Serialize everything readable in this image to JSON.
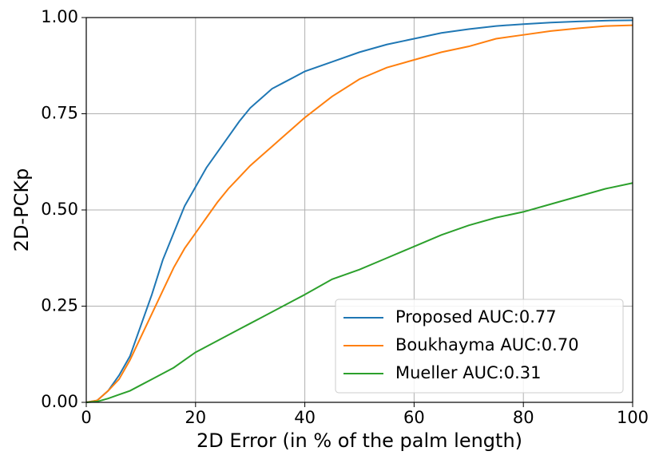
{
  "chart_data": {
    "type": "line",
    "xlabel": "2D Error (in % of the palm length)",
    "ylabel": "2D-PCKp",
    "x": [
      0,
      2,
      4,
      6,
      8,
      10,
      12,
      14,
      16,
      18,
      20,
      22,
      24,
      26,
      28,
      30,
      32,
      34,
      36,
      38,
      40,
      45,
      50,
      55,
      60,
      65,
      70,
      75,
      80,
      85,
      90,
      95,
      100
    ],
    "series": [
      {
        "name": "Proposed AUC:0.77",
        "color": "#1f77b4",
        "values": [
          0,
          0.005,
          0.03,
          0.07,
          0.12,
          0.2,
          0.28,
          0.37,
          0.44,
          0.51,
          0.56,
          0.61,
          0.65,
          0.69,
          0.73,
          0.765,
          0.79,
          0.815,
          0.83,
          0.845,
          0.86,
          0.885,
          0.91,
          0.93,
          0.945,
          0.96,
          0.97,
          0.978,
          0.983,
          0.987,
          0.99,
          0.992,
          0.993
        ]
      },
      {
        "name": "Boukhayma AUC:0.70",
        "color": "#ff7f0e",
        "values": [
          0,
          0.005,
          0.03,
          0.06,
          0.11,
          0.17,
          0.23,
          0.29,
          0.35,
          0.4,
          0.44,
          0.48,
          0.52,
          0.555,
          0.585,
          0.615,
          0.64,
          0.665,
          0.69,
          0.715,
          0.74,
          0.795,
          0.84,
          0.87,
          0.89,
          0.91,
          0.925,
          0.945,
          0.955,
          0.965,
          0.972,
          0.978,
          0.98
        ]
      },
      {
        "name": "Mueller AUC:0.31",
        "color": "#2ca02c",
        "values": [
          0,
          0.002,
          0.01,
          0.02,
          0.03,
          0.045,
          0.06,
          0.075,
          0.09,
          0.11,
          0.13,
          0.145,
          0.16,
          0.175,
          0.19,
          0.205,
          0.22,
          0.235,
          0.25,
          0.265,
          0.28,
          0.32,
          0.345,
          0.375,
          0.405,
          0.435,
          0.46,
          0.48,
          0.495,
          0.515,
          0.535,
          0.555,
          0.57
        ]
      }
    ],
    "xlim": [
      0,
      100
    ],
    "xticks": [
      0,
      20,
      40,
      60,
      80,
      100
    ],
    "ylim": [
      0,
      1
    ],
    "yticks": [
      {
        "value": 0,
        "label": "0.00"
      },
      {
        "value": 0.25,
        "label": "0.25"
      },
      {
        "value": 0.5,
        "label": "0.50"
      },
      {
        "value": 0.75,
        "label": "0.75"
      },
      {
        "value": 1,
        "label": "1.00"
      }
    ],
    "grid": true,
    "legend": "lower right"
  }
}
